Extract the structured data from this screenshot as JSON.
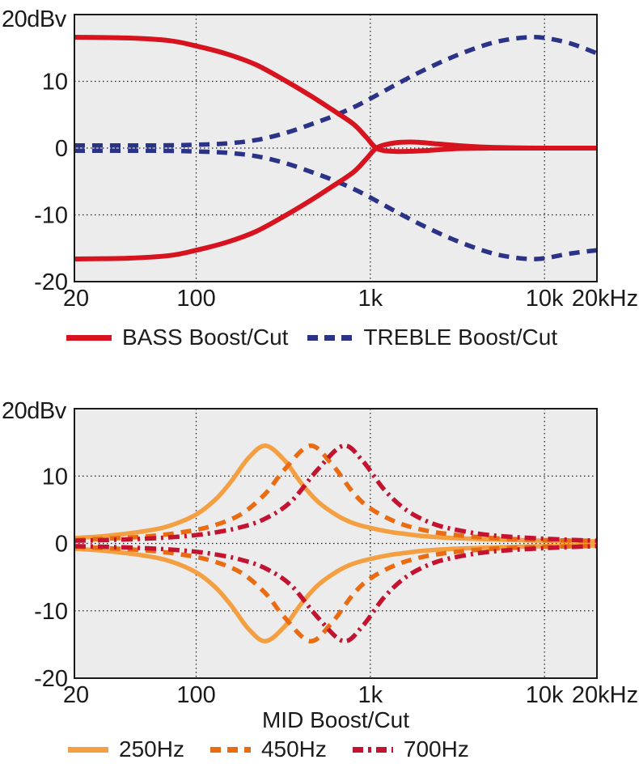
{
  "figure": {
    "description": "EQ frequency response curves",
    "background": "#ffffff"
  },
  "chart_data": [
    {
      "type": "line",
      "name": "bass-treble-response",
      "title": "",
      "xlabel": "",
      "ylabel_top": "20dBv",
      "x_scale": "log",
      "x_range": [
        20,
        20000
      ],
      "y_range": [
        -20,
        20
      ],
      "grid": "dotted",
      "legend_position": "below",
      "plot_bg": "#ececec",
      "grid_color": "#1a1a1a",
      "border_color": "#1a1a1a",
      "text_color": "#1a1a1a",
      "x_ticks": [
        {
          "v": 20,
          "label": "20",
          "grid": false,
          "dx": 2
        },
        {
          "v": 100,
          "label": "100",
          "grid": true,
          "dx": 0
        },
        {
          "v": 1000,
          "label": "1k",
          "grid": true,
          "dx": 0
        },
        {
          "v": 10000,
          "label": "10k",
          "grid": true,
          "dx": 0
        },
        {
          "v": 20000,
          "label": "20kHz",
          "grid": false,
          "dx": 10
        }
      ],
      "y_ticks": [
        {
          "v": 10,
          "label": "10",
          "grid": true
        },
        {
          "v": 0,
          "label": "0",
          "grid": true
        },
        {
          "v": -10,
          "label": "-10",
          "grid": true
        },
        {
          "v": -20,
          "label": "-20",
          "grid": false
        }
      ],
      "series": [
        {
          "name": "treble-boost",
          "color": "#2a3386",
          "style": "dashed",
          "width": 5.5,
          "points": [
            [
              20,
              0.4
            ],
            [
              60,
              0.4
            ],
            [
              100,
              0.5
            ],
            [
              150,
              0.7
            ],
            [
              220,
              1.2
            ],
            [
              320,
              2.2
            ],
            [
              450,
              3.5
            ],
            [
              600,
              4.7
            ],
            [
              800,
              6.1
            ],
            [
              1000,
              7.4
            ],
            [
              1400,
              9.5
            ],
            [
              2000,
              11.6
            ],
            [
              3000,
              13.7
            ],
            [
              4500,
              15.4
            ],
            [
              6000,
              16.2
            ],
            [
              8000,
              16.6
            ],
            [
              10000,
              16.5
            ],
            [
              14000,
              15.7
            ],
            [
              20000,
              14.2
            ]
          ]
        },
        {
          "name": "treble-cut",
          "color": "#2a3386",
          "style": "dashed",
          "width": 5.5,
          "points": [
            [
              20,
              -0.4
            ],
            [
              60,
              -0.4
            ],
            [
              100,
              -0.5
            ],
            [
              150,
              -0.7
            ],
            [
              220,
              -1.2
            ],
            [
              320,
              -2.2
            ],
            [
              450,
              -3.5
            ],
            [
              600,
              -4.7
            ],
            [
              800,
              -6.1
            ],
            [
              1000,
              -7.4
            ],
            [
              1400,
              -9.5
            ],
            [
              2000,
              -11.6
            ],
            [
              3000,
              -13.7
            ],
            [
              4500,
              -15.4
            ],
            [
              6000,
              -16.2
            ],
            [
              8000,
              -16.6
            ],
            [
              10000,
              -16.5
            ],
            [
              14000,
              -15.8
            ],
            [
              20000,
              -15.3
            ]
          ]
        },
        {
          "name": "bass-boost",
          "color": "#d6131e",
          "style": "solid",
          "width": 6,
          "points": [
            [
              20,
              16.6
            ],
            [
              40,
              16.5
            ],
            [
              70,
              16.1
            ],
            [
              100,
              15.3
            ],
            [
              150,
              14.1
            ],
            [
              220,
              12.5
            ],
            [
              320,
              10.2
            ],
            [
              450,
              7.9
            ],
            [
              600,
              5.8
            ],
            [
              800,
              3.6
            ],
            [
              950,
              1.6
            ],
            [
              1100,
              -0.1
            ],
            [
              1400,
              -0.5
            ],
            [
              2000,
              -0.4
            ],
            [
              3000,
              -0.1
            ],
            [
              5000,
              0
            ],
            [
              10000,
              0
            ],
            [
              20000,
              0
            ]
          ]
        },
        {
          "name": "bass-cut",
          "color": "#d6131e",
          "style": "solid",
          "width": 6,
          "points": [
            [
              20,
              -16.6
            ],
            [
              40,
              -16.5
            ],
            [
              70,
              -16.1
            ],
            [
              100,
              -15.3
            ],
            [
              150,
              -14.1
            ],
            [
              220,
              -12.5
            ],
            [
              320,
              -10.2
            ],
            [
              450,
              -7.9
            ],
            [
              600,
              -5.8
            ],
            [
              800,
              -3.6
            ],
            [
              950,
              -1.6
            ],
            [
              1100,
              0.1
            ],
            [
              1400,
              0.8
            ],
            [
              1800,
              0.9
            ],
            [
              2500,
              0.6
            ],
            [
              3500,
              0.3
            ],
            [
              5000,
              0.1
            ],
            [
              10000,
              0
            ],
            [
              20000,
              0
            ]
          ]
        }
      ],
      "legend": [
        {
          "label": "BASS Boost/Cut",
          "color": "#d6131e",
          "style": "solid"
        },
        {
          "label": "TREBLE Boost/Cut",
          "color": "#2a3386",
          "style": "dashed"
        }
      ]
    },
    {
      "type": "line",
      "name": "mid-response",
      "title": "",
      "xlabel": "MID Boost/Cut",
      "ylabel_top": "20dBv",
      "x_scale": "log",
      "x_range": [
        20,
        20000
      ],
      "y_range": [
        -20,
        20
      ],
      "grid": "dotted",
      "legend_position": "below",
      "plot_bg": "#ececec",
      "grid_color": "#1a1a1a",
      "border_color": "#1a1a1a",
      "text_color": "#1a1a1a",
      "x_ticks": [
        {
          "v": 20,
          "label": "20",
          "grid": false,
          "dx": 2
        },
        {
          "v": 100,
          "label": "100",
          "grid": true,
          "dx": 0
        },
        {
          "v": 1000,
          "label": "1k",
          "grid": true,
          "dx": 0
        },
        {
          "v": 10000,
          "label": "10k",
          "grid": true,
          "dx": 0
        },
        {
          "v": 20000,
          "label": "20kHz",
          "grid": false,
          "dx": 10
        }
      ],
      "y_ticks": [
        {
          "v": 10,
          "label": "10",
          "grid": true
        },
        {
          "v": 0,
          "label": "0",
          "grid": true
        },
        {
          "v": -10,
          "label": "-10",
          "grid": true
        },
        {
          "v": -20,
          "label": "-20",
          "grid": false
        }
      ],
      "series": [
        {
          "name": "mid-250-boost",
          "color": "#f49f42",
          "style": "solid",
          "width": 5.5,
          "points": [
            [
              20,
              0.8
            ],
            [
              30,
              1.1
            ],
            [
              50,
              1.8
            ],
            [
              70,
              2.6
            ],
            [
              100,
              4.3
            ],
            [
              130,
              6.6
            ],
            [
              160,
              9.3
            ],
            [
              200,
              12.7
            ],
            [
              250,
              14.5
            ],
            [
              320,
              12.4
            ],
            [
              400,
              9.0
            ],
            [
              500,
              6.2
            ],
            [
              650,
              4.1
            ],
            [
              800,
              3.0
            ],
            [
              1000,
              2.3
            ],
            [
              1300,
              1.7
            ],
            [
              1600,
              1.4
            ],
            [
              2000,
              1.1
            ],
            [
              3000,
              0.8
            ],
            [
              5000,
              0.6
            ],
            [
              10000,
              0.4
            ],
            [
              20000,
              0.3
            ]
          ]
        },
        {
          "name": "mid-250-cut",
          "color": "#f49f42",
          "style": "solid",
          "width": 5.5,
          "points": [
            [
              20,
              -0.8
            ],
            [
              30,
              -1.1
            ],
            [
              50,
              -1.8
            ],
            [
              70,
              -2.6
            ],
            [
              100,
              -4.3
            ],
            [
              130,
              -6.6
            ],
            [
              160,
              -9.3
            ],
            [
              200,
              -12.7
            ],
            [
              250,
              -14.5
            ],
            [
              320,
              -12.4
            ],
            [
              400,
              -9.0
            ],
            [
              500,
              -6.2
            ],
            [
              650,
              -4.1
            ],
            [
              800,
              -3.0
            ],
            [
              1000,
              -2.3
            ],
            [
              1300,
              -1.7
            ],
            [
              1600,
              -1.4
            ],
            [
              2000,
              -1.1
            ],
            [
              3000,
              -0.8
            ],
            [
              5000,
              -0.6
            ],
            [
              10000,
              -0.4
            ],
            [
              20000,
              -0.3
            ]
          ]
        },
        {
          "name": "mid-450-boost",
          "color": "#ea6c12",
          "style": "dashed",
          "width": 5.5,
          "points": [
            [
              20,
              0.5
            ],
            [
              30,
              0.7
            ],
            [
              50,
              1.0
            ],
            [
              80,
              1.6
            ],
            [
              120,
              2.5
            ],
            [
              180,
              4.3
            ],
            [
              250,
              7.4
            ],
            [
              320,
              10.9
            ],
            [
              450,
              14.5
            ],
            [
              600,
              11.8
            ],
            [
              800,
              7.5
            ],
            [
              1000,
              5.2
            ],
            [
              1400,
              3.2
            ],
            [
              2000,
              2.0
            ],
            [
              3000,
              1.3
            ],
            [
              5000,
              0.8
            ],
            [
              10000,
              0.5
            ],
            [
              20000,
              0.4
            ]
          ]
        },
        {
          "name": "mid-450-cut",
          "color": "#ea6c12",
          "style": "dashed",
          "width": 5.5,
          "points": [
            [
              20,
              -0.5
            ],
            [
              30,
              -0.7
            ],
            [
              50,
              -1.0
            ],
            [
              80,
              -1.6
            ],
            [
              120,
              -2.5
            ],
            [
              180,
              -4.3
            ],
            [
              250,
              -7.4
            ],
            [
              320,
              -10.9
            ],
            [
              450,
              -14.5
            ],
            [
              600,
              -11.8
            ],
            [
              800,
              -7.5
            ],
            [
              1000,
              -5.2
            ],
            [
              1400,
              -3.2
            ],
            [
              2000,
              -2.0
            ],
            [
              3000,
              -1.3
            ],
            [
              5000,
              -0.8
            ],
            [
              10000,
              -0.5
            ],
            [
              20000,
              -0.4
            ]
          ]
        },
        {
          "name": "mid-700-boost",
          "color": "#c41330",
          "style": "dashdot",
          "width": 5.5,
          "points": [
            [
              20,
              0.4
            ],
            [
              30,
              0.5
            ],
            [
              50,
              0.7
            ],
            [
              80,
              1.0
            ],
            [
              120,
              1.5
            ],
            [
              180,
              2.4
            ],
            [
              250,
              3.7
            ],
            [
              350,
              6.2
            ],
            [
              500,
              11.0
            ],
            [
              700,
              14.5
            ],
            [
              900,
              12.3
            ],
            [
              1200,
              8.0
            ],
            [
              1600,
              5.0
            ],
            [
              2200,
              3.1
            ],
            [
              3000,
              2.1
            ],
            [
              5000,
              1.2
            ],
            [
              10000,
              0.7
            ],
            [
              20000,
              0.4
            ]
          ]
        },
        {
          "name": "mid-700-cut",
          "color": "#c41330",
          "style": "dashdot",
          "width": 5.5,
          "points": [
            [
              20,
              -0.4
            ],
            [
              30,
              -0.5
            ],
            [
              50,
              -0.7
            ],
            [
              80,
              -1.0
            ],
            [
              120,
              -1.5
            ],
            [
              180,
              -2.4
            ],
            [
              250,
              -3.7
            ],
            [
              350,
              -6.2
            ],
            [
              500,
              -11.0
            ],
            [
              700,
              -14.5
            ],
            [
              900,
              -12.3
            ],
            [
              1200,
              -8.0
            ],
            [
              1600,
              -5.0
            ],
            [
              2200,
              -3.1
            ],
            [
              3000,
              -2.1
            ],
            [
              5000,
              -1.2
            ],
            [
              10000,
              -0.7
            ],
            [
              20000,
              -0.4
            ]
          ]
        }
      ],
      "legend": [
        {
          "label": "250Hz",
          "color": "#f49f42",
          "style": "solid"
        },
        {
          "label": "450Hz",
          "color": "#ea6c12",
          "style": "dashed"
        },
        {
          "label": "700Hz",
          "color": "#c41330",
          "style": "dashdot"
        }
      ]
    }
  ]
}
